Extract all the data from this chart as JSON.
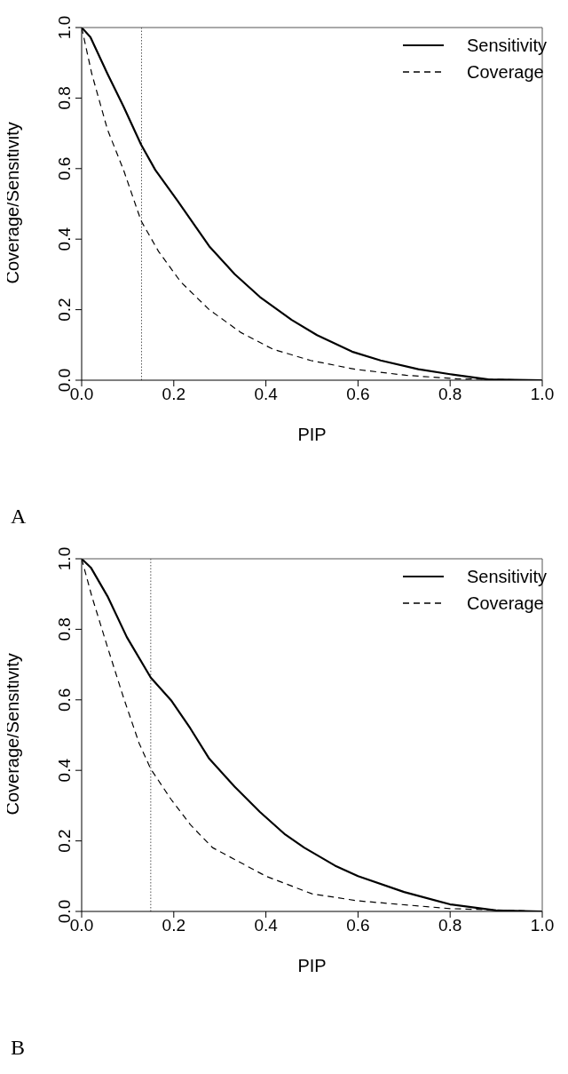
{
  "chart_data": [
    {
      "type": "line",
      "xlabel": "PIP",
      "ylabel": "Coverage/Sensitivity",
      "legend": "top right",
      "annotations": [
        "A"
      ],
      "xlim": [
        0,
        1
      ],
      "ylim": [
        0,
        1
      ],
      "xticks": [
        {
          "value": 0,
          "label": "0.0"
        },
        {
          "value": 0.2,
          "label": "0.2"
        },
        {
          "value": 0.4,
          "label": "0.4"
        },
        {
          "value": 0.6,
          "label": "0.6"
        },
        {
          "value": 0.8,
          "label": "0.8"
        },
        {
          "value": 1,
          "label": "1.0"
        }
      ],
      "yticks": [
        {
          "value": 0,
          "label": "0.0"
        },
        {
          "value": 0.2,
          "label": "0.2"
        },
        {
          "value": 0.4,
          "label": "0.4"
        },
        {
          "value": 0.6,
          "label": "0.6"
        },
        {
          "value": 0.8,
          "label": "0.8"
        },
        {
          "value": 1,
          "label": "1.0"
        }
      ],
      "ref_lines": [
        {
          "axis": "x",
          "value": 0.13,
          "line_style": "dotted",
          "color": "#555555"
        }
      ],
      "series": [
        {
          "name": "Sensitivity",
          "color": "#000000",
          "line_style": "solid",
          "x": [
            0,
            0.019,
            0.056,
            0.091,
            0.129,
            0.16,
            0.208,
            0.277,
            0.332,
            0.387,
            0.456,
            0.511,
            0.587,
            0.649,
            0.731,
            0.8,
            0.883,
            1
          ],
          "values": [
            1,
            0.973,
            0.869,
            0.776,
            0.668,
            0.596,
            0.509,
            0.38,
            0.301,
            0.236,
            0.171,
            0.128,
            0.081,
            0.056,
            0.031,
            0.017,
            0.002,
            0
          ]
        },
        {
          "name": "Coverage",
          "color": "#000000",
          "line_style": "dashed",
          "x": [
            0,
            0.022,
            0.056,
            0.091,
            0.129,
            0.167,
            0.215,
            0.277,
            0.346,
            0.415,
            0.497,
            0.594,
            0.704,
            0.814,
            1
          ],
          "values": [
            1,
            0.869,
            0.711,
            0.596,
            0.452,
            0.365,
            0.279,
            0.2,
            0.135,
            0.088,
            0.056,
            0.031,
            0.014,
            0.004,
            0
          ]
        }
      ]
    },
    {
      "type": "line",
      "xlabel": "PIP",
      "ylabel": "Coverage/Sensitivity",
      "legend": "top right",
      "annotations": [
        "B"
      ],
      "xlim": [
        0,
        1
      ],
      "ylim": [
        0,
        1
      ],
      "xticks": [
        {
          "value": 0,
          "label": "0.0"
        },
        {
          "value": 0.2,
          "label": "0.2"
        },
        {
          "value": 0.4,
          "label": "0.4"
        },
        {
          "value": 0.6,
          "label": "0.6"
        },
        {
          "value": 0.8,
          "label": "0.8"
        },
        {
          "value": 1,
          "label": "1.0"
        }
      ],
      "yticks": [
        {
          "value": 0,
          "label": "0.0"
        },
        {
          "value": 0.2,
          "label": "0.2"
        },
        {
          "value": 0.4,
          "label": "0.4"
        },
        {
          "value": 0.6,
          "label": "0.6"
        },
        {
          "value": 0.8,
          "label": "0.8"
        },
        {
          "value": 1,
          "label": "1.0"
        }
      ],
      "ref_lines": [
        {
          "axis": "x",
          "value": 0.15,
          "line_style": "dotted",
          "color": "#555555"
        }
      ],
      "series": [
        {
          "name": "Sensitivity",
          "color": "#000000",
          "line_style": "solid",
          "x": [
            0,
            0.02,
            0.056,
            0.098,
            0.15,
            0.194,
            0.236,
            0.277,
            0.332,
            0.387,
            0.442,
            0.483,
            0.55,
            0.6,
            0.7,
            0.8,
            0.9,
            1
          ],
          "values": [
            1,
            0.975,
            0.894,
            0.778,
            0.663,
            0.599,
            0.519,
            0.433,
            0.354,
            0.282,
            0.218,
            0.181,
            0.13,
            0.1,
            0.055,
            0.02,
            0.003,
            0
          ]
        },
        {
          "name": "Coverage",
          "color": "#000000",
          "line_style": "dashed",
          "x": [
            0,
            0.022,
            0.056,
            0.091,
            0.125,
            0.15,
            0.194,
            0.236,
            0.284,
            0.4,
            0.5,
            0.6,
            0.8,
            1
          ],
          "values": [
            1,
            0.894,
            0.75,
            0.606,
            0.476,
            0.404,
            0.318,
            0.246,
            0.181,
            0.1,
            0.05,
            0.03,
            0.008,
            0
          ]
        }
      ]
    }
  ]
}
